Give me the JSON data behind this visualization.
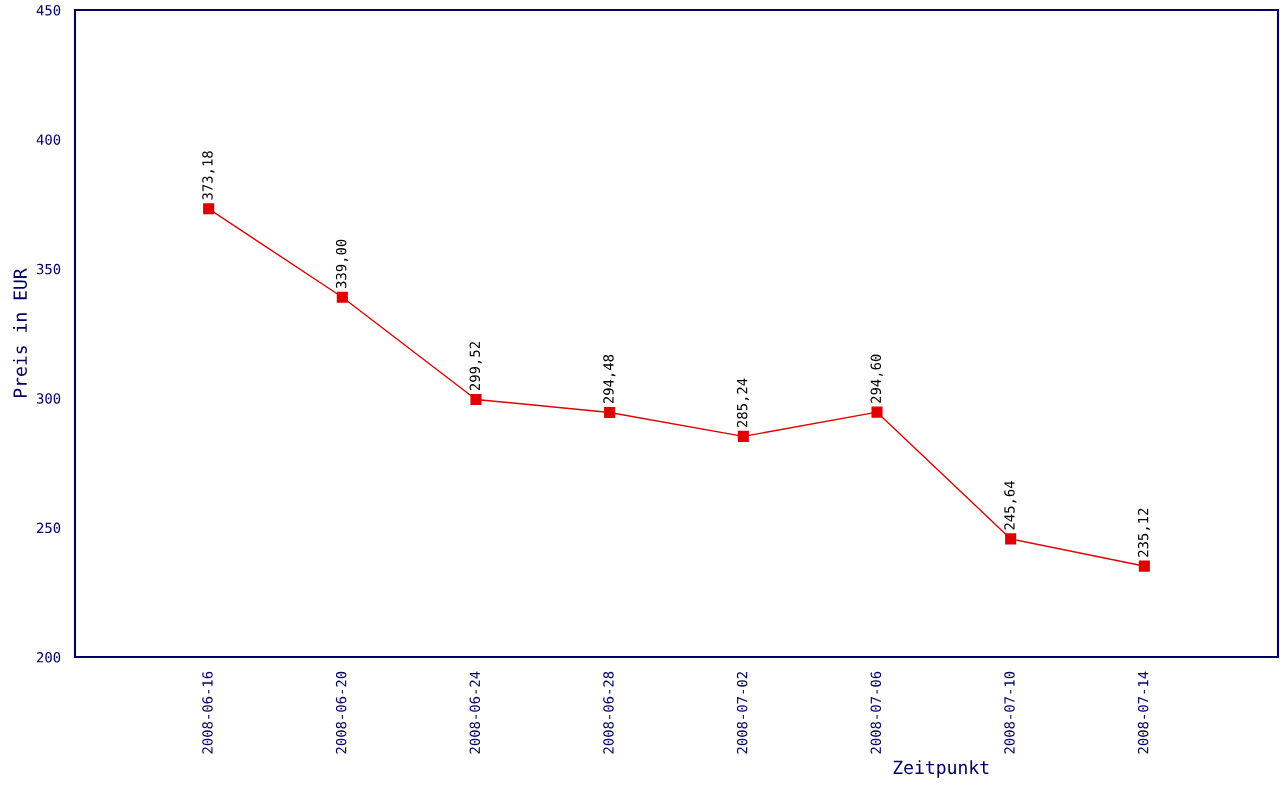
{
  "chart_data": {
    "type": "line",
    "xlabel": "Zeitpunkt",
    "ylabel": "Preis in EUR",
    "categories": [
      "2008-06-16",
      "2008-06-20",
      "2008-06-24",
      "2008-06-28",
      "2008-07-02",
      "2008-07-06",
      "2008-07-10",
      "2008-07-14"
    ],
    "series": [
      {
        "color": "#e00000",
        "values": [
          373.18,
          339.0,
          299.52,
          294.48,
          285.24,
          294.6,
          245.64,
          235.12
        ],
        "value_labels": [
          "373,18",
          "339,00",
          "299,52",
          "294,48",
          "285,24",
          "294,60",
          "245,64",
          "235,12"
        ]
      }
    ],
    "ylim": [
      200,
      450
    ],
    "yticks": [
      200,
      250,
      300,
      350,
      400,
      450
    ],
    "grid": false,
    "legend": false,
    "marker": "square",
    "line_style": "solid"
  }
}
